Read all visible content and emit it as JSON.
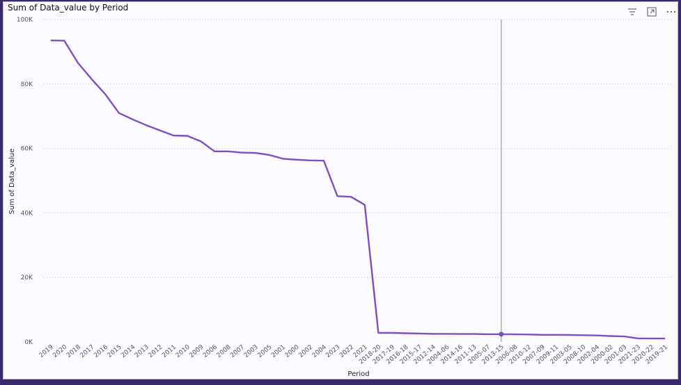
{
  "visual": {
    "title": "Sum of Data_value by Period",
    "icons": {
      "filter": "filter-icon",
      "focus": "focus-mode-icon",
      "more": "more-options-icon"
    }
  },
  "colors": {
    "line": "#7e4ec2",
    "frame": "#3b2a6b",
    "grid": "#c9c6d6"
  },
  "chart_data": {
    "type": "line",
    "xlabel": "Period",
    "ylabel": "Sum of Data_value",
    "ylim": [
      0,
      100000
    ],
    "yticks": [
      0,
      20000,
      40000,
      60000,
      80000,
      100000
    ],
    "ytick_labels": [
      "0K",
      "20K",
      "40K",
      "60K",
      "80K",
      "100K"
    ],
    "grid": true,
    "x": [
      "2019",
      "2020",
      "2018",
      "2017",
      "2016",
      "2015",
      "2014",
      "2013",
      "2012",
      "2011",
      "2010",
      "2009",
      "2006",
      "2008",
      "2007",
      "2003",
      "2005",
      "2001",
      "2000",
      "2002",
      "2004",
      "2023",
      "2022",
      "2021",
      "2018-20",
      "2017-19",
      "2016-18",
      "2015-17",
      "2012-14",
      "2004-06",
      "2014-16",
      "2011-13",
      "2005-07",
      "2013-15",
      "2006-08",
      "2010-12",
      "2007-09",
      "2009-11",
      "2003-05",
      "2008-10",
      "2002-04",
      "2000-02",
      "2001-03",
      "2021-23",
      "2020-22",
      "2019-21"
    ],
    "series": [
      {
        "values": [
          93500,
          93400,
          86500,
          81500,
          76800,
          71000,
          69000,
          67200,
          65600,
          64000,
          63900,
          62200,
          59100,
          59100,
          58700,
          58600,
          58000,
          56800,
          56500,
          56300,
          56200,
          45200,
          45000,
          42500,
          2800,
          2800,
          2700,
          2600,
          2500,
          2500,
          2450,
          2450,
          2400,
          2400,
          2350,
          2300,
          2200,
          2200,
          2150,
          2100,
          2000,
          1800,
          1700,
          1100,
          1050,
          1050
        ]
      }
    ],
    "highlight": {
      "category": "2013-15"
    }
  }
}
